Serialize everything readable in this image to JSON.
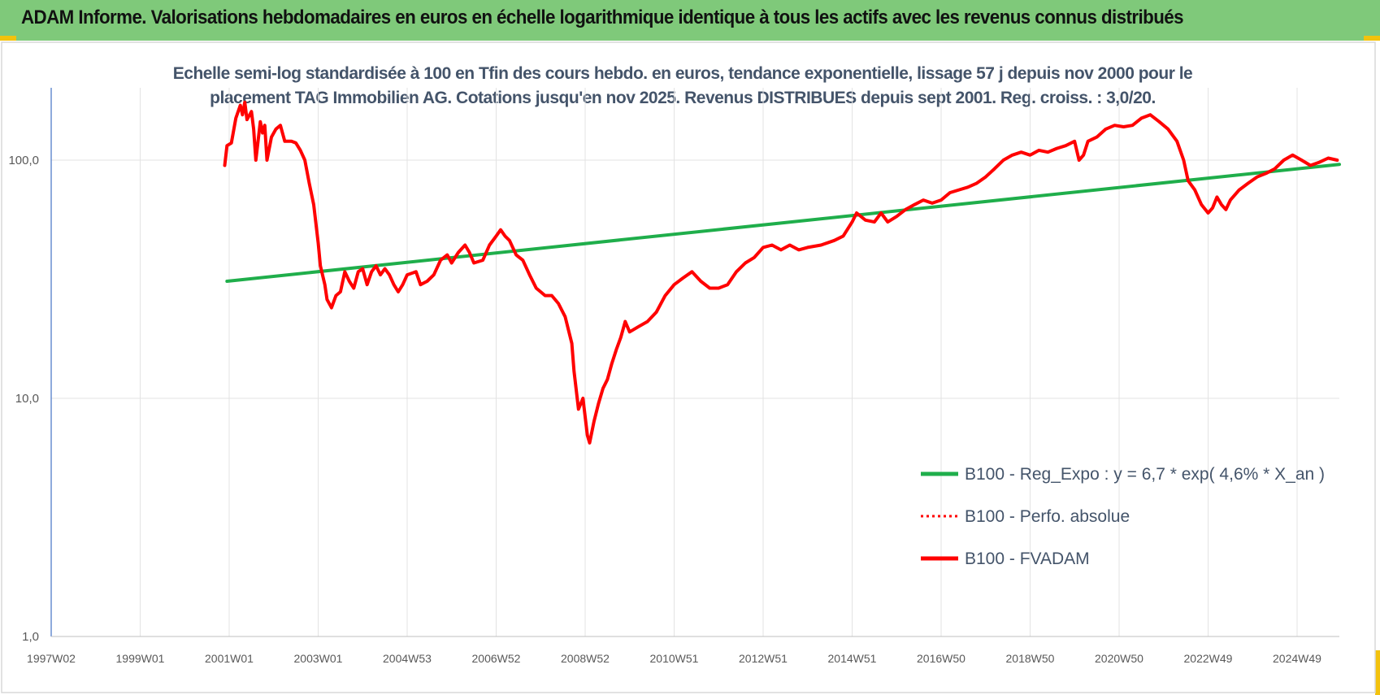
{
  "banner": {
    "title": "ADAM Informe. Valorisations hebdomadaires en euros en échelle logarithmique identique à tous les actifs avec les revenus connus distribués",
    "color": "#7fc97a"
  },
  "chart_data": {
    "type": "line",
    "subtitle": "Echelle semi-log standardisée à 100 en Tfin des cours hebdo. en euros, tendance exponentielle, lissage 57 j depuis nov 2000 pour le placement TAG Immobilien AG. Cotations jusqu'en nov 2025. Revenus DISTRIBUES depuis sept 2001. Reg. croiss. : 3,0/20.",
    "y_scale": "log",
    "ylim": [
      1,
      200
    ],
    "xlim": [
      1997.0,
      2025.95
    ],
    "y_ticks": [
      {
        "value": 1,
        "label": "1,0"
      },
      {
        "value": 10,
        "label": "10,0"
      },
      {
        "value": 100,
        "label": "100,0"
      }
    ],
    "x_ticks": [
      {
        "value": 1997.0,
        "label": "1997W02"
      },
      {
        "value": 1999.0,
        "label": "1999W01"
      },
      {
        "value": 2001.0,
        "label": "2001W01"
      },
      {
        "value": 2003.0,
        "label": "2003W01"
      },
      {
        "value": 2005.0,
        "label": "2004W53"
      },
      {
        "value": 2007.0,
        "label": "2006W52"
      },
      {
        "value": 2009.0,
        "label": "2008W52"
      },
      {
        "value": 2011.0,
        "label": "2010W51"
      },
      {
        "value": 2013.0,
        "label": "2012W51"
      },
      {
        "value": 2015.0,
        "label": "2014W51"
      },
      {
        "value": 2017.0,
        "label": "2016W50"
      },
      {
        "value": 2019.0,
        "label": "2018W50"
      },
      {
        "value": 2021.0,
        "label": "2020W50"
      },
      {
        "value": 2023.0,
        "label": "2022W49"
      },
      {
        "value": 2025.0,
        "label": "2024W49"
      }
    ],
    "grid": true,
    "legend_position": "lower-right",
    "series": [
      {
        "name": "B100 - Reg_Expo : y = 6,7 * exp( 4,6% *  X_an )",
        "color": "#1fae4b",
        "style": "solid",
        "points": [
          [
            2000.95,
            31
          ],
          [
            2025.95,
            96
          ]
        ]
      },
      {
        "name": "B100 - Perfo. absolue",
        "color": "#ff0000",
        "style": "dotted",
        "points": []
      },
      {
        "name": "B100 - FVADAM",
        "color": "#ff0000",
        "style": "solid",
        "points": [
          [
            2000.9,
            95
          ],
          [
            2000.95,
            115
          ],
          [
            2001.05,
            118
          ],
          [
            2001.15,
            150
          ],
          [
            2001.25,
            170
          ],
          [
            2001.3,
            155
          ],
          [
            2001.35,
            175
          ],
          [
            2001.4,
            148
          ],
          [
            2001.5,
            160
          ],
          [
            2001.55,
            135
          ],
          [
            2001.6,
            100
          ],
          [
            2001.7,
            145
          ],
          [
            2001.75,
            130
          ],
          [
            2001.8,
            140
          ],
          [
            2001.85,
            100
          ],
          [
            2001.95,
            125
          ],
          [
            2002.05,
            135
          ],
          [
            2002.15,
            140
          ],
          [
            2002.25,
            120
          ],
          [
            2002.4,
            120
          ],
          [
            2002.5,
            118
          ],
          [
            2002.6,
            110
          ],
          [
            2002.7,
            100
          ],
          [
            2002.8,
            80
          ],
          [
            2002.9,
            65
          ],
          [
            2003.0,
            45
          ],
          [
            2003.05,
            36
          ],
          [
            2003.15,
            30
          ],
          [
            2003.2,
            26
          ],
          [
            2003.3,
            24
          ],
          [
            2003.4,
            27
          ],
          [
            2003.5,
            28
          ],
          [
            2003.6,
            34
          ],
          [
            2003.7,
            31
          ],
          [
            2003.8,
            29
          ],
          [
            2003.9,
            34
          ],
          [
            2004.0,
            35
          ],
          [
            2004.1,
            30
          ],
          [
            2004.2,
            34
          ],
          [
            2004.3,
            36
          ],
          [
            2004.4,
            33
          ],
          [
            2004.5,
            35
          ],
          [
            2004.6,
            33
          ],
          [
            2004.7,
            30
          ],
          [
            2004.8,
            28
          ],
          [
            2004.9,
            30
          ],
          [
            2005.0,
            33
          ],
          [
            2005.2,
            34
          ],
          [
            2005.3,
            30
          ],
          [
            2005.45,
            31
          ],
          [
            2005.6,
            33
          ],
          [
            2005.75,
            38
          ],
          [
            2005.9,
            40
          ],
          [
            2006.0,
            37
          ],
          [
            2006.15,
            41
          ],
          [
            2006.3,
            44
          ],
          [
            2006.4,
            41
          ],
          [
            2006.5,
            37
          ],
          [
            2006.7,
            38
          ],
          [
            2006.85,
            44
          ],
          [
            2007.0,
            48
          ],
          [
            2007.1,
            51
          ],
          [
            2007.2,
            48
          ],
          [
            2007.3,
            46
          ],
          [
            2007.45,
            40
          ],
          [
            2007.6,
            38
          ],
          [
            2007.75,
            33
          ],
          [
            2007.9,
            29
          ],
          [
            2008.0,
            28
          ],
          [
            2008.1,
            27
          ],
          [
            2008.25,
            27
          ],
          [
            2008.4,
            25
          ],
          [
            2008.55,
            22
          ],
          [
            2008.7,
            17
          ],
          [
            2008.75,
            13
          ],
          [
            2008.85,
            9
          ],
          [
            2008.95,
            10
          ],
          [
            2009.05,
            7
          ],
          [
            2009.1,
            6.5
          ],
          [
            2009.2,
            8
          ],
          [
            2009.3,
            9.5
          ],
          [
            2009.4,
            11
          ],
          [
            2009.5,
            12
          ],
          [
            2009.6,
            14
          ],
          [
            2009.7,
            16
          ],
          [
            2009.8,
            18
          ],
          [
            2009.9,
            21
          ],
          [
            2010.0,
            19
          ],
          [
            2010.2,
            20
          ],
          [
            2010.4,
            21
          ],
          [
            2010.6,
            23
          ],
          [
            2010.8,
            27
          ],
          [
            2011.0,
            30
          ],
          [
            2011.2,
            32
          ],
          [
            2011.4,
            34
          ],
          [
            2011.6,
            31
          ],
          [
            2011.8,
            29
          ],
          [
            2012.0,
            29
          ],
          [
            2012.2,
            30
          ],
          [
            2012.4,
            34
          ],
          [
            2012.6,
            37
          ],
          [
            2012.8,
            39
          ],
          [
            2013.0,
            43
          ],
          [
            2013.2,
            44
          ],
          [
            2013.4,
            42
          ],
          [
            2013.6,
            44
          ],
          [
            2013.8,
            42
          ],
          [
            2014.0,
            43
          ],
          [
            2014.3,
            44
          ],
          [
            2014.6,
            46
          ],
          [
            2014.8,
            48
          ],
          [
            2015.0,
            55
          ],
          [
            2015.1,
            60
          ],
          [
            2015.3,
            56
          ],
          [
            2015.5,
            55
          ],
          [
            2015.65,
            60
          ],
          [
            2015.8,
            55
          ],
          [
            2016.0,
            58
          ],
          [
            2016.2,
            62
          ],
          [
            2016.4,
            65
          ],
          [
            2016.6,
            68
          ],
          [
            2016.8,
            66
          ],
          [
            2017.0,
            68
          ],
          [
            2017.2,
            73
          ],
          [
            2017.4,
            75
          ],
          [
            2017.6,
            77
          ],
          [
            2017.8,
            80
          ],
          [
            2018.0,
            85
          ],
          [
            2018.2,
            92
          ],
          [
            2018.4,
            100
          ],
          [
            2018.6,
            105
          ],
          [
            2018.8,
            108
          ],
          [
            2019.0,
            105
          ],
          [
            2019.2,
            110
          ],
          [
            2019.4,
            108
          ],
          [
            2019.6,
            112
          ],
          [
            2019.8,
            115
          ],
          [
            2020.0,
            120
          ],
          [
            2020.1,
            100
          ],
          [
            2020.2,
            105
          ],
          [
            2020.3,
            120
          ],
          [
            2020.5,
            125
          ],
          [
            2020.7,
            135
          ],
          [
            2020.9,
            140
          ],
          [
            2021.1,
            138
          ],
          [
            2021.3,
            140
          ],
          [
            2021.5,
            150
          ],
          [
            2021.7,
            155
          ],
          [
            2021.9,
            145
          ],
          [
            2022.1,
            135
          ],
          [
            2022.3,
            120
          ],
          [
            2022.45,
            100
          ],
          [
            2022.55,
            82
          ],
          [
            2022.7,
            75
          ],
          [
            2022.85,
            65
          ],
          [
            2023.0,
            60
          ],
          [
            2023.1,
            63
          ],
          [
            2023.2,
            70
          ],
          [
            2023.3,
            65
          ],
          [
            2023.4,
            62
          ],
          [
            2023.5,
            68
          ],
          [
            2023.7,
            75
          ],
          [
            2023.9,
            80
          ],
          [
            2024.1,
            85
          ],
          [
            2024.3,
            88
          ],
          [
            2024.5,
            92
          ],
          [
            2024.7,
            100
          ],
          [
            2024.9,
            105
          ],
          [
            2025.1,
            100
          ],
          [
            2025.3,
            95
          ],
          [
            2025.5,
            98
          ],
          [
            2025.7,
            102
          ],
          [
            2025.9,
            100
          ]
        ]
      }
    ]
  }
}
